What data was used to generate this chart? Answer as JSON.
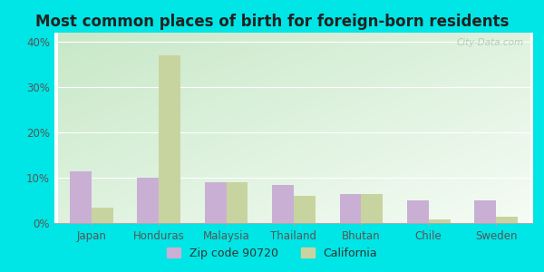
{
  "title": "Most common places of birth for foreign-born residents",
  "categories": [
    "Japan",
    "Honduras",
    "Malaysia",
    "Thailand",
    "Bhutan",
    "Chile",
    "Sweden"
  ],
  "zip_values": [
    11.5,
    10.0,
    9.0,
    8.5,
    6.5,
    5.0,
    5.0
  ],
  "ca_values": [
    3.5,
    37.0,
    9.0,
    6.0,
    6.5,
    0.8,
    1.5
  ],
  "zip_color": "#c9afd4",
  "ca_color": "#c8d4a0",
  "background_outer": "#00e5e5",
  "background_inner_tl": "#c8e8c8",
  "background_inner_br": "#f0f8f0",
  "legend_zip": "Zip code 90720",
  "legend_ca": "California",
  "yticks": [
    0,
    10,
    20,
    30,
    40
  ],
  "ytick_labels": [
    "0%",
    "10%",
    "20%",
    "30%",
    "40%"
  ],
  "ylim": [
    0,
    42
  ],
  "watermark": "City-Data.com",
  "title_fontsize": 12,
  "axis_fontsize": 8.5,
  "legend_fontsize": 9
}
